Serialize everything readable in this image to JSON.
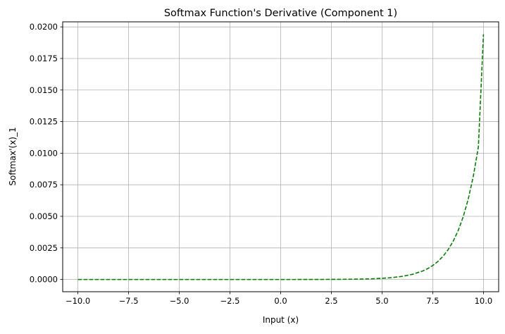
{
  "chart_data": {
    "type": "line",
    "title": "Softmax Function's Derivative (Component 1)",
    "xlabel": "Input (x)",
    "ylabel": "Softmax'(x)_1",
    "xlim": [
      -10.75,
      10.75
    ],
    "ylim": [
      -0.00097,
      0.0204
    ],
    "xticks": [
      -10.0,
      -7.5,
      -5.0,
      -2.5,
      0.0,
      2.5,
      5.0,
      7.5,
      10.0
    ],
    "xtick_labels": [
      "−10.0",
      "−7.5",
      "−5.0",
      "−2.5",
      "0.0",
      "2.5",
      "5.0",
      "7.5",
      "10.0"
    ],
    "yticks": [
      0.0,
      0.0025,
      0.005,
      0.0075,
      0.01,
      0.0125,
      0.015,
      0.0175,
      0.02
    ],
    "ytick_labels": [
      "0.0000",
      "0.0025",
      "0.0050",
      "0.0075",
      "0.0100",
      "0.0125",
      "0.0150",
      "0.0175",
      "0.0200"
    ],
    "grid": true,
    "series": [
      {
        "color": "#008000",
        "line_style": "dashed",
        "x": [
          -10.0,
          -9.0,
          -8.0,
          -7.0,
          -6.0,
          -5.0,
          -4.0,
          -3.0,
          -2.0,
          -1.0,
          0.0,
          1.0,
          2.0,
          3.0,
          3.5,
          4.0,
          4.5,
          5.0,
          5.5,
          6.0,
          6.5,
          7.0,
          7.25,
          7.5,
          7.75,
          8.0,
          8.25,
          8.5,
          8.75,
          9.0,
          9.25,
          9.5,
          9.75,
          10.0
        ],
        "y": [
          0.0,
          0.0,
          0.0,
          0.0,
          0.0,
          0.0,
          0.0,
          0.0,
          0.0,
          0.0,
          0.0,
          1e-07,
          4.8e-06,
          1.23e-05,
          2.02e-05,
          3.34e-05,
          5.51e-05,
          9.08e-05,
          0.0001497,
          0.0002468,
          0.000407,
          0.000671,
          0.000861,
          0.001106,
          0.00142,
          0.001823,
          0.002341,
          0.003006,
          0.00386,
          0.004956,
          0.006364,
          0.008171,
          0.010492,
          0.01941
        ]
      }
    ]
  }
}
